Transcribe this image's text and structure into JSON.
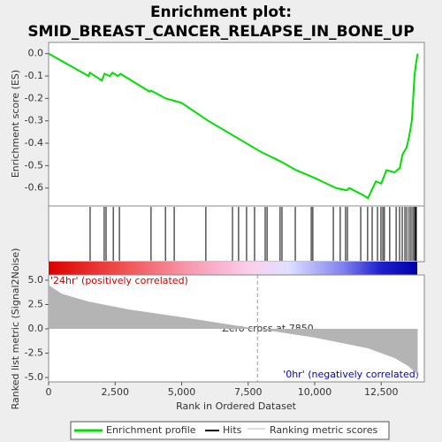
{
  "chart_data": [
    {
      "type": "line",
      "title": [
        "Enrichment plot:",
        "SMID_BREAST_CANCER_RELAPSE_IN_BONE_UP"
      ],
      "ylabel": "Enrichment score (ES)",
      "color": "#00e000",
      "x": [
        0,
        1500,
        1550,
        2000,
        2100,
        2300,
        2400,
        2600,
        2700,
        3800,
        3850,
        4400,
        4700,
        5000,
        6000,
        7000,
        8000,
        8700,
        9000,
        9300,
        9900,
        10000,
        10800,
        11200,
        11300,
        11800,
        12000,
        12100,
        12300,
        12500,
        12700,
        13000,
        13200,
        13300,
        13450,
        13550,
        13650,
        13700,
        13750,
        13800,
        13870
      ],
      "values": [
        0,
        -0.1,
        -0.085,
        -0.12,
        -0.09,
        -0.1,
        -0.085,
        -0.1,
        -0.09,
        -0.17,
        -0.165,
        -0.2,
        -0.21,
        -0.22,
        -0.3,
        -0.37,
        -0.44,
        -0.48,
        -0.5,
        -0.52,
        -0.55,
        -0.555,
        -0.6,
        -0.61,
        -0.6,
        -0.63,
        -0.645,
        -0.62,
        -0.57,
        -0.58,
        -0.52,
        -0.53,
        -0.51,
        -0.45,
        -0.42,
        -0.37,
        -0.3,
        -0.2,
        -0.1,
        -0.05,
        0
      ],
      "xlim": [
        0,
        14120
      ],
      "ylim": [
        -0.68,
        0.05
      ],
      "yticks": [
        {
          "value": 0,
          "label": "0.0"
        },
        -0.1,
        -0.2,
        -0.3,
        -0.4,
        -0.5,
        -0.6
      ]
    },
    {
      "type": "rug",
      "color": "#000000",
      "xlim": [
        0,
        14120
      ],
      "x": [
        1560,
        2090,
        2160,
        2430,
        2660,
        3850,
        4390,
        4720,
        5910,
        6910,
        7140,
        7440,
        7740,
        8140,
        8210,
        8700,
        8770,
        9270,
        9870,
        9930,
        10700,
        10960,
        11160,
        11230,
        11730,
        11990,
        12160,
        12360,
        12490,
        12560,
        12620,
        12820,
        13060,
        13190,
        13290,
        13390,
        13460,
        13550,
        13620,
        13690,
        13750,
        13790,
        13820
      ]
    },
    {
      "type": "area",
      "ylabel": "Ranked list metric (Signal2Noise)",
      "xlabel": "Rank in Ordered Dataset",
      "color": "#b4b4b4",
      "x": [
        0,
        500,
        1500,
        3000,
        5000,
        7850,
        10000,
        12000,
        13000,
        13500,
        13800,
        13870
      ],
      "values": [
        4.5,
        3.6,
        2.8,
        2.0,
        1.2,
        0,
        -0.9,
        -2.0,
        -3.0,
        -3.8,
        -4.5,
        -5.0
      ],
      "xlim": [
        0,
        14120
      ],
      "ylim": [
        -5.45,
        5.54
      ],
      "xticks": [
        0,
        {
          "value": 2500,
          "label": "2,500"
        },
        {
          "value": 5000,
          "label": "5,000"
        },
        {
          "value": 7500,
          "label": "7,500"
        },
        {
          "value": 10000,
          "label": "10,000"
        },
        {
          "value": 12500,
          "label": "12,500"
        }
      ],
      "yticks": [
        {
          "value": 5,
          "label": "5.0"
        },
        {
          "value": 2.5,
          "label": "2.5"
        },
        {
          "value": 0,
          "label": "0.0"
        },
        {
          "value": -2.5,
          "label": "-2.5"
        },
        {
          "value": -5,
          "label": "-5.0"
        }
      ],
      "zero_cross": 7850,
      "annotations": [
        "'24hr' (positively correlated)",
        "Zero cross at 7850",
        "'0hr' (negatively correlated)"
      ]
    }
  ],
  "legend": [
    "Enrichment profile",
    "Hits",
    "Ranking metric scores"
  ]
}
